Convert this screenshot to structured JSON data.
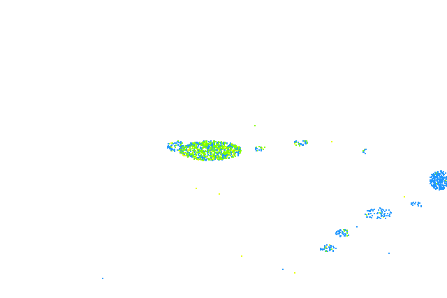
{
  "radar_overlay": {
    "colors": {
      "light": "#1E96FF",
      "moderate": "#7FFF00",
      "heavy": "#E6FF00",
      "background": "#FFFFFF"
    }
  }
}
